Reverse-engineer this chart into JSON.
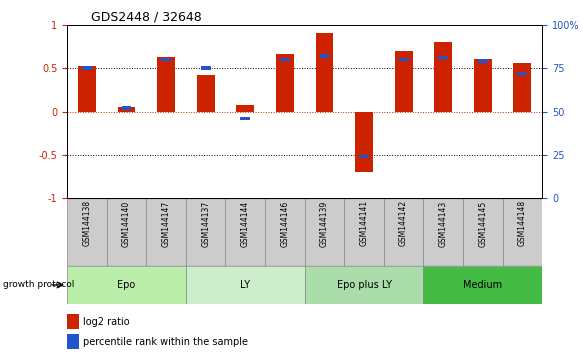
{
  "title": "GDS2448 / 32648",
  "samples": [
    "GSM144138",
    "GSM144140",
    "GSM144147",
    "GSM144137",
    "GSM144144",
    "GSM144146",
    "GSM144139",
    "GSM144141",
    "GSM144142",
    "GSM144143",
    "GSM144145",
    "GSM144148"
  ],
  "log2_ratio": [
    0.53,
    0.05,
    0.63,
    0.42,
    0.08,
    0.66,
    0.9,
    -0.7,
    0.7,
    0.8,
    0.6,
    0.56
  ],
  "percentile_rank": [
    75,
    52,
    80,
    75,
    46,
    80,
    82,
    24,
    80,
    81,
    79,
    72
  ],
  "bar_color": "#CC2200",
  "percentile_color": "#2255CC",
  "groups": [
    {
      "label": "Epo",
      "start": 0,
      "end": 3,
      "color": "#BBEEAA"
    },
    {
      "label": "LY",
      "start": 3,
      "end": 6,
      "color": "#CCEECC"
    },
    {
      "label": "Epo plus LY",
      "start": 6,
      "end": 9,
      "color": "#AADDAA"
    },
    {
      "label": "Medium",
      "start": 9,
      "end": 12,
      "color": "#44BB44"
    }
  ],
  "ylim": [
    -1,
    1
  ],
  "right_ylim": [
    0,
    100
  ],
  "yticks_left": [
    -1,
    -0.5,
    0,
    0.5,
    1
  ],
  "yticks_right": [
    0,
    25,
    50,
    75,
    100
  ],
  "legend_log2": "log2 ratio",
  "legend_pct": "percentile rank within the sample",
  "growth_protocol_label": "growth protocol",
  "bar_width": 0.45,
  "pct_bar_height": 0.04
}
